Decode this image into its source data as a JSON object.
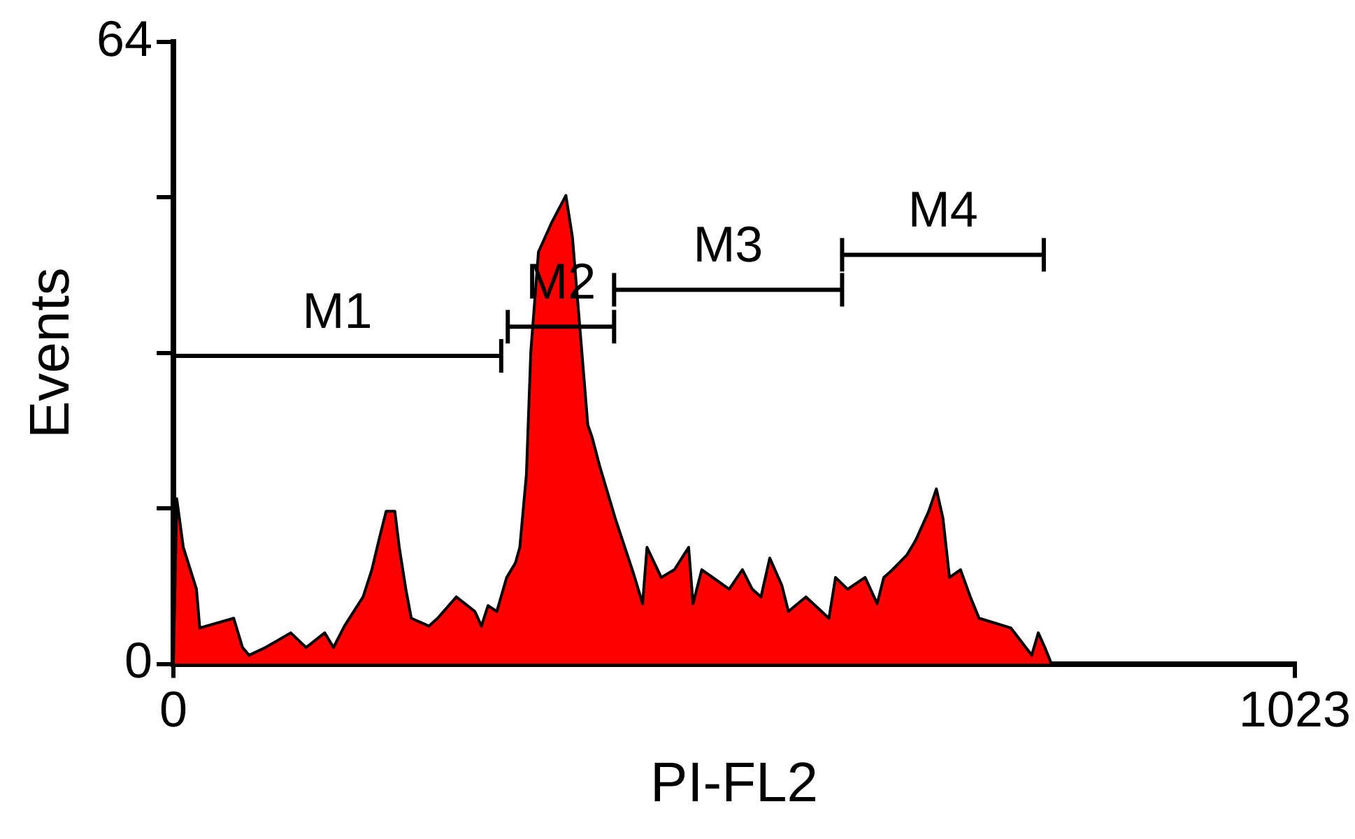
{
  "chart_data": {
    "type": "area",
    "xlabel": "PI-FL2",
    "ylabel": "Events",
    "xlim": [
      0,
      1023
    ],
    "xticks": [
      0,
      1023
    ],
    "ylim": [
      0,
      64
    ],
    "yticks": [
      0,
      {
        "value": 16,
        "label": null
      },
      {
        "value": 32,
        "label": null
      },
      {
        "value": 48,
        "label": null
      },
      64
    ],
    "grid": false,
    "legend": "top",
    "series": [
      {
        "color": "#ff0000",
        "x": [
          0,
          3,
          9,
          21,
          24,
          55,
          63,
          69,
          84,
          107,
          121,
          138,
          146,
          156,
          173,
          181,
          188,
          194,
          202,
          206,
          212,
          217,
          233,
          241,
          258,
          275,
          281,
          287,
          295,
          304,
          312,
          316,
          322,
          326,
          333,
          345,
          358,
          364,
          372,
          378,
          382,
          389,
          403,
          420,
          428,
          432,
          445,
          457,
          470,
          474,
          482,
          507,
          519,
          528,
          536,
          544,
          555,
          561,
          577,
          598,
          604,
          615,
          631,
          642,
          648,
          656,
          669,
          677,
          689,
          696,
          702,
          708,
          718,
          727,
          735,
          764,
          783,
          789,
          795,
          801,
          1023
        ],
        "values": [
          0,
          17,
          12,
          7.7,
          3.7,
          4.7,
          1.7,
          0.9,
          1.7,
          3.2,
          1.7,
          3.2,
          1.7,
          3.9,
          6.9,
          9.7,
          13,
          15.7,
          15.7,
          12,
          7.7,
          4.7,
          3.9,
          4.7,
          6.9,
          5.4,
          3.9,
          6,
          5.4,
          8.9,
          10.4,
          12,
          19.5,
          32.1,
          42.4,
          45.4,
          48.2,
          43.9,
          32.9,
          24.6,
          23.3,
          20.3,
          15,
          9.2,
          6.2,
          12,
          8.9,
          9.7,
          12,
          6.2,
          9.7,
          7.7,
          9.7,
          7.7,
          6.9,
          10.9,
          8.1,
          5.4,
          6.9,
          4.7,
          8.9,
          7.7,
          8.9,
          6.2,
          8.9,
          9.7,
          11.2,
          12.7,
          15.7,
          18,
          15,
          8.9,
          9.7,
          6.9,
          4.7,
          3.7,
          0.9,
          3.2,
          1.7,
          0,
          0
        ]
      },
      {
        "type": "line",
        "name": "M1",
        "color": "#000000",
        "x": [
          0,
          299
        ],
        "values": [
          31.7,
          31.7
        ]
      },
      {
        "type": "line",
        "name": "M2",
        "color": "#000000",
        "x": [
          305,
          402
        ],
        "values": [
          34.7,
          34.7
        ]
      },
      {
        "type": "line",
        "name": "M3",
        "color": "#000000",
        "x": [
          402,
          610
        ],
        "values": [
          38.5,
          38.5
        ]
      },
      {
        "type": "line",
        "name": "M4",
        "color": "#000000",
        "x": [
          610,
          794
        ],
        "values": [
          42.1,
          42.1
        ]
      }
    ]
  }
}
